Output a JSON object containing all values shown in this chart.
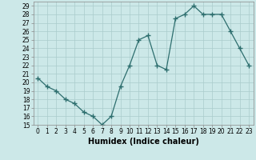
{
  "x": [
    0,
    1,
    2,
    3,
    4,
    5,
    6,
    7,
    8,
    9,
    10,
    11,
    12,
    13,
    14,
    15,
    16,
    17,
    18,
    19,
    20,
    21,
    22,
    23
  ],
  "y": [
    20.5,
    19.5,
    19,
    18,
    17.5,
    16.5,
    16,
    15,
    16,
    19.5,
    22,
    25,
    25.5,
    22,
    21.5,
    27.5,
    28,
    29,
    28,
    28,
    28,
    26,
    24,
    22
  ],
  "line_color": "#2d6e6e",
  "marker": "+",
  "marker_size": 4,
  "bg_color": "#cce8e8",
  "grid_color": "#aacccc",
  "xlabel": "Humidex (Indice chaleur)",
  "ylim": [
    15,
    29.5
  ],
  "xlim": [
    -0.5,
    23.5
  ],
  "yticks": [
    15,
    16,
    17,
    18,
    19,
    20,
    21,
    22,
    23,
    24,
    25,
    26,
    27,
    28,
    29
  ],
  "xticks": [
    0,
    1,
    2,
    3,
    4,
    5,
    6,
    7,
    8,
    9,
    10,
    11,
    12,
    13,
    14,
    15,
    16,
    17,
    18,
    19,
    20,
    21,
    22,
    23
  ],
  "tick_fontsize": 5.5,
  "xlabel_fontsize": 7,
  "spine_color": "#888888"
}
